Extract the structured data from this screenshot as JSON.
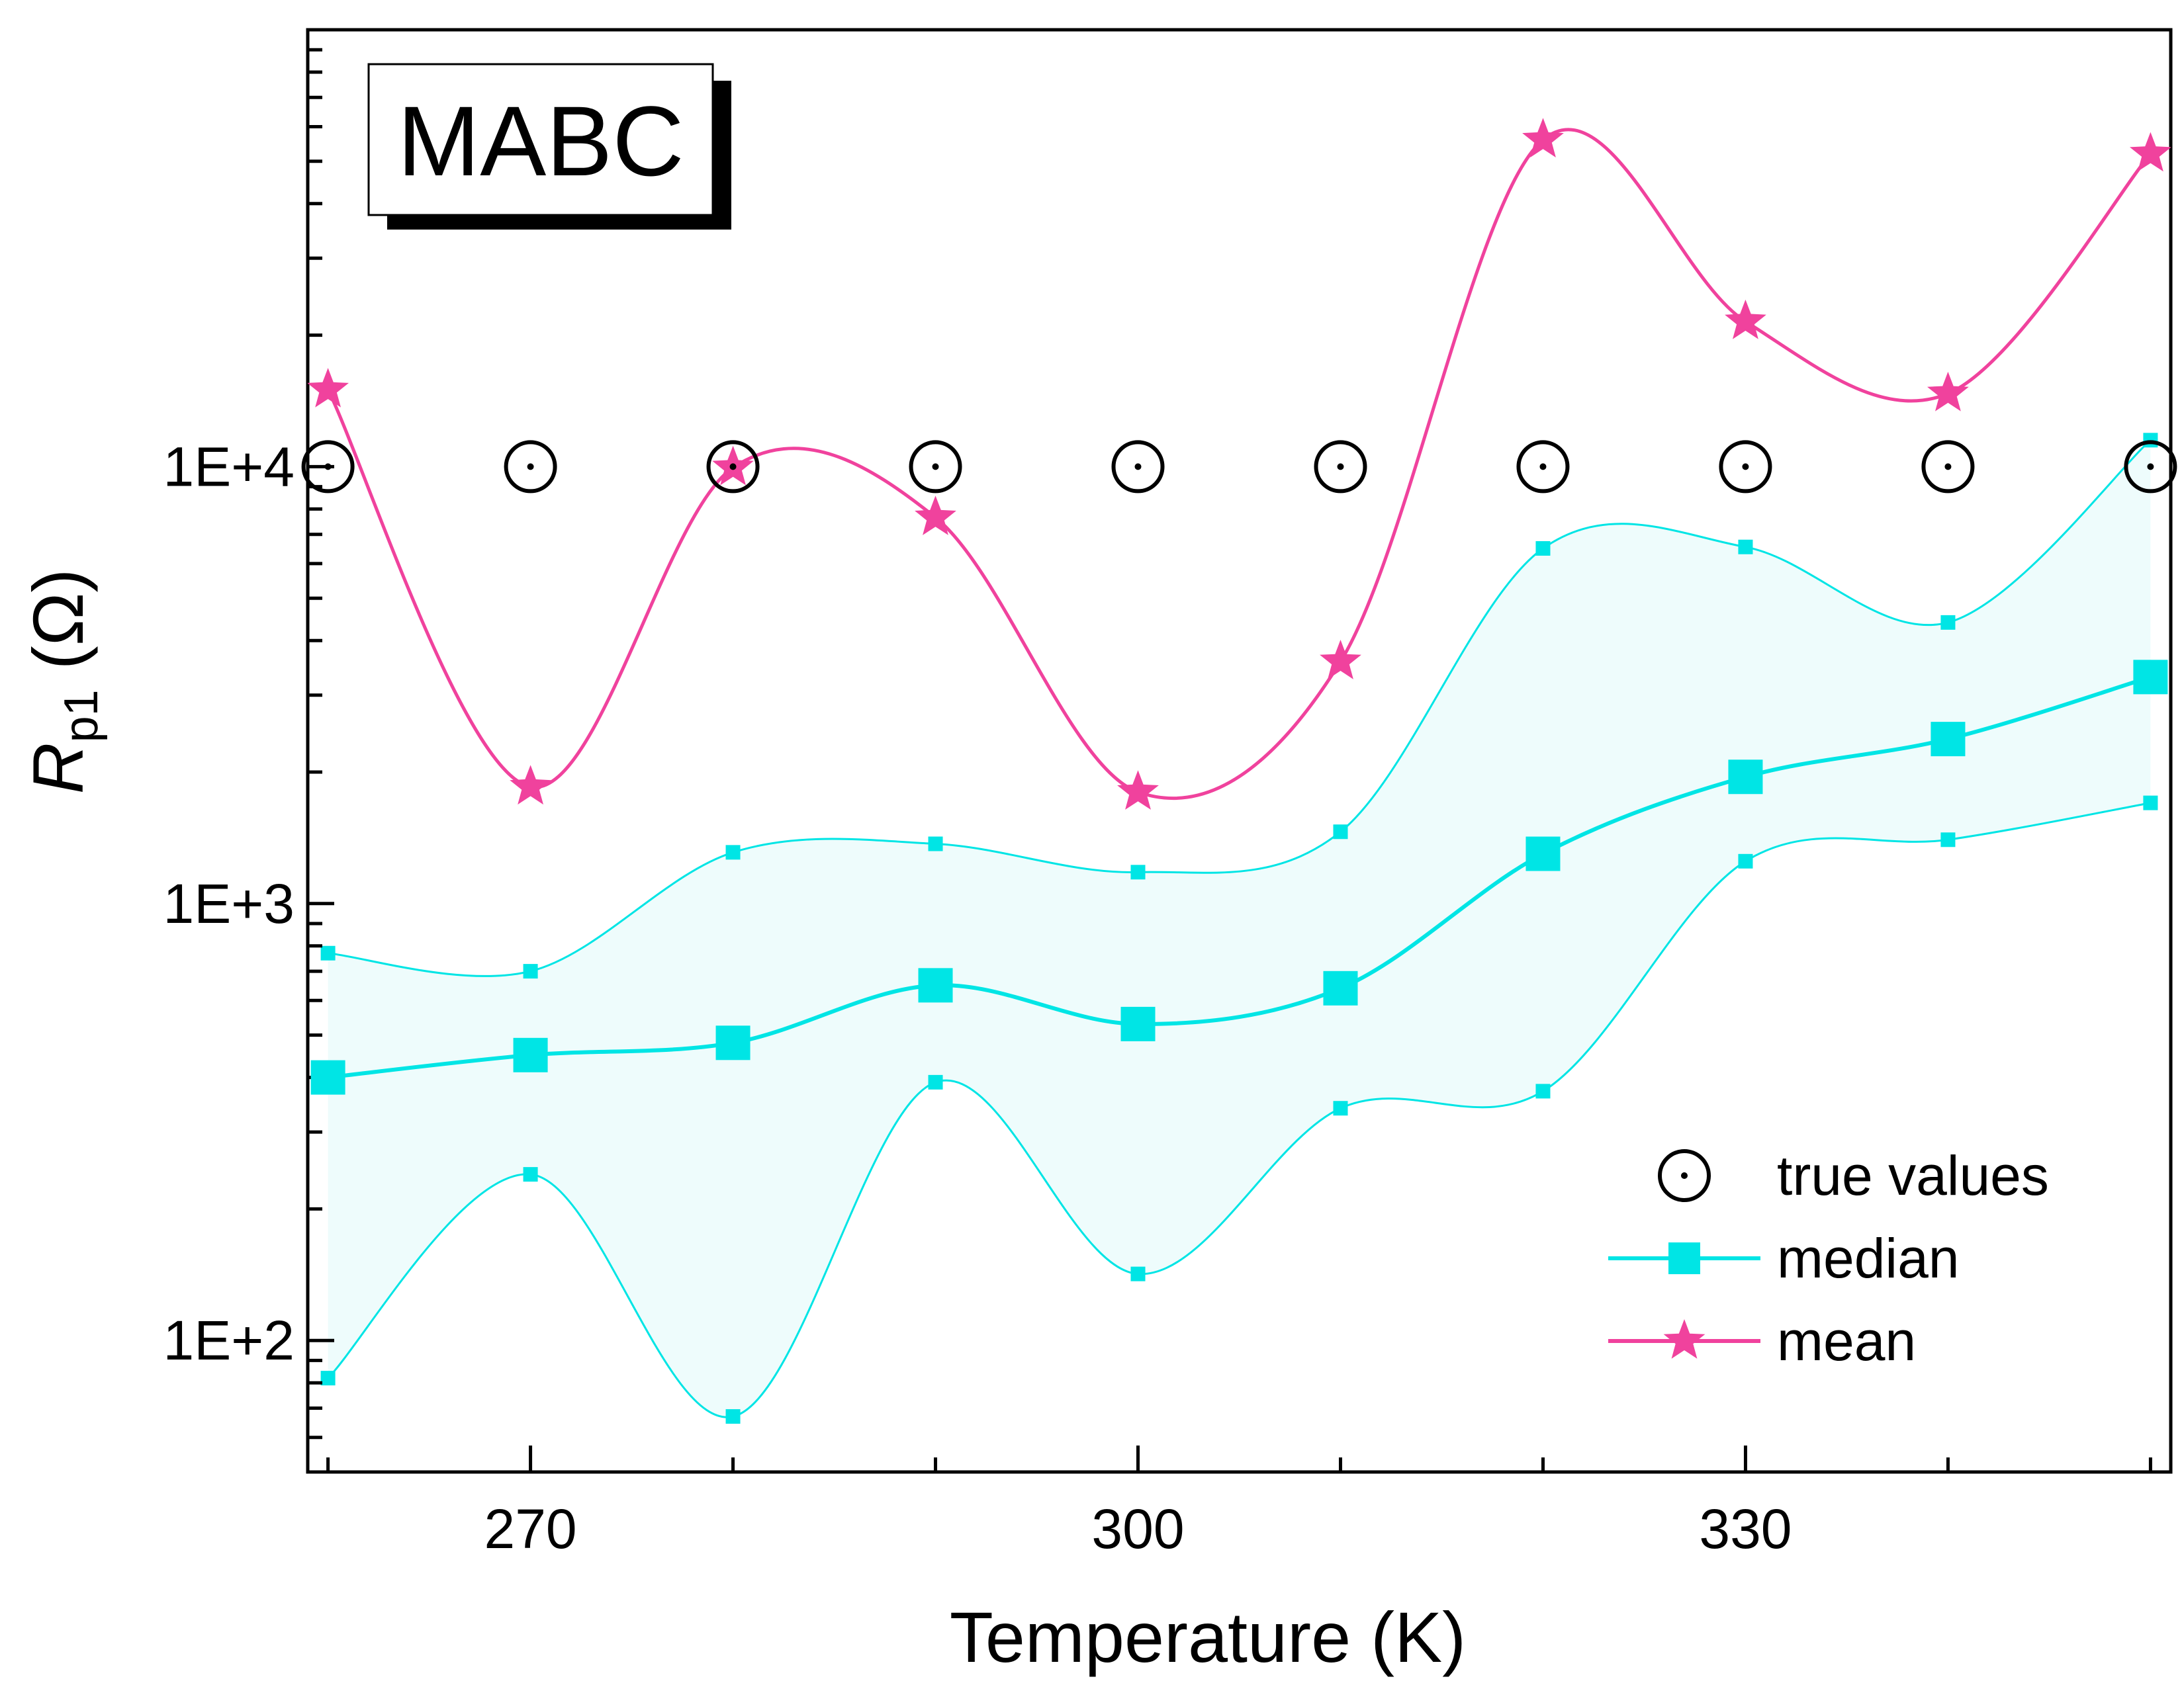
{
  "chart_data": {
    "type": "line",
    "panel_label": "MABC",
    "xlabel": "Temperature (K)",
    "ylabel": {
      "main": "R",
      "sub": "p1",
      "unit": " (Ω)"
    },
    "xlim": [
      259,
      351
    ],
    "ylim": [
      50,
      100000
    ],
    "yscale": "log",
    "x_ticks": [
      270,
      300,
      330
    ],
    "y_tick_labels": [
      "1E+2",
      "1E+3",
      "1E+4"
    ],
    "y_tick_values": [
      100,
      1000,
      10000
    ],
    "legend_position": "bottom-right",
    "x": [
      260,
      270,
      280,
      290,
      300,
      310,
      320,
      330,
      340,
      350
    ],
    "series": [
      {
        "name": "true values",
        "marker": "circle-dot",
        "color": "#000000",
        "values": [
          10000,
          10000,
          10000,
          10000,
          10000,
          10000,
          10000,
          10000,
          10000,
          10000
        ]
      },
      {
        "name": "median",
        "marker": "square",
        "color": "#00e5e5",
        "values": [
          400,
          450,
          480,
          650,
          530,
          640,
          1300,
          1950,
          2380,
          3300
        ]
      },
      {
        "name": "mean",
        "marker": "star",
        "color": "#f0429d",
        "values": [
          15000,
          1850,
          9950,
          7650,
          1800,
          3580,
          56000,
          21500,
          14700,
          52000
        ]
      }
    ],
    "band": {
      "color": "#00e5e5",
      "fill": "#eefcfc",
      "upper": [
        770,
        700,
        1310,
        1370,
        1180,
        1460,
        6500,
        6550,
        4400,
        11500
      ],
      "lower": [
        82,
        240,
        67,
        390,
        142,
        340,
        372,
        1250,
        1400,
        1700
      ]
    }
  }
}
